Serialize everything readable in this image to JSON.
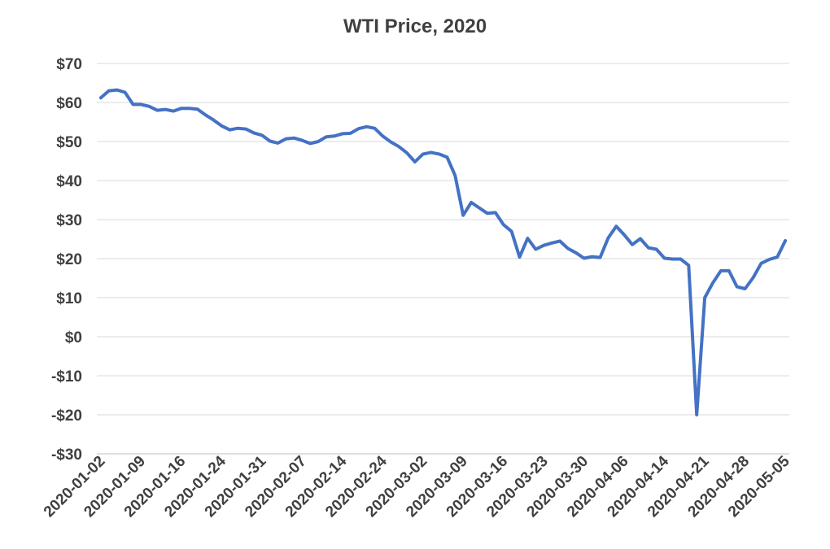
{
  "chart_data": {
    "type": "line",
    "title": "WTI Price, 2020",
    "xlabel": "",
    "ylabel": "",
    "ylim": [
      -30,
      70
    ],
    "y_ticks": [
      70,
      60,
      50,
      40,
      30,
      20,
      10,
      0,
      -10,
      -20,
      -30
    ],
    "y_tick_labels": [
      "$70",
      "$60",
      "$50",
      "$40",
      "$30",
      "$20",
      "$10",
      "$0",
      "-$10",
      "-$20",
      "-$30"
    ],
    "x_tick_labels": [
      "2020-01-02",
      "2020-01-09",
      "2020-01-16",
      "2020-01-24",
      "2020-01-31",
      "2020-02-07",
      "2020-02-14",
      "2020-02-24",
      "2020-03-02",
      "2020-03-09",
      "2020-03-16",
      "2020-03-23",
      "2020-03-30",
      "2020-04-06",
      "2020-04-14",
      "2020-04-21",
      "2020-04-28",
      "2020-05-05"
    ],
    "grid": true,
    "legend": "none",
    "color": "#4472c4",
    "x": [
      "2020-01-02",
      "2020-01-03",
      "2020-01-06",
      "2020-01-07",
      "2020-01-08",
      "2020-01-09",
      "2020-01-10",
      "2020-01-13",
      "2020-01-14",
      "2020-01-15",
      "2020-01-16",
      "2020-01-17",
      "2020-01-21",
      "2020-01-22",
      "2020-01-23",
      "2020-01-24",
      "2020-01-27",
      "2020-01-28",
      "2020-01-29",
      "2020-01-30",
      "2020-01-31",
      "2020-02-03",
      "2020-02-04",
      "2020-02-05",
      "2020-02-06",
      "2020-02-07",
      "2020-02-10",
      "2020-02-11",
      "2020-02-12",
      "2020-02-13",
      "2020-02-14",
      "2020-02-18",
      "2020-02-19",
      "2020-02-20",
      "2020-02-21",
      "2020-02-24",
      "2020-02-25",
      "2020-02-26",
      "2020-02-27",
      "2020-02-28",
      "2020-03-02",
      "2020-03-03",
      "2020-03-04",
      "2020-03-05",
      "2020-03-06",
      "2020-03-09",
      "2020-03-10",
      "2020-03-11",
      "2020-03-12",
      "2020-03-13",
      "2020-03-16",
      "2020-03-17",
      "2020-03-18",
      "2020-03-19",
      "2020-03-20",
      "2020-03-23",
      "2020-03-24",
      "2020-03-25",
      "2020-03-26",
      "2020-03-27",
      "2020-03-30",
      "2020-03-31",
      "2020-04-01",
      "2020-04-02",
      "2020-04-03",
      "2020-04-06",
      "2020-04-07",
      "2020-04-08",
      "2020-04-09",
      "2020-04-13",
      "2020-04-14",
      "2020-04-15",
      "2020-04-16",
      "2020-04-17",
      "2020-04-20",
      "2020-04-21",
      "2020-04-22",
      "2020-04-23",
      "2020-04-24",
      "2020-04-27",
      "2020-04-28",
      "2020-04-29",
      "2020-04-30",
      "2020-05-01",
      "2020-05-04",
      "2020-05-05"
    ],
    "series": [
      {
        "values": [
          61.2,
          63.0,
          63.2,
          62.6,
          59.5,
          59.5,
          59.0,
          58.0,
          58.2,
          57.8,
          58.5,
          58.5,
          58.3,
          56.8,
          55.5,
          54.0,
          53.0,
          53.4,
          53.2,
          52.2,
          51.6,
          50.1,
          49.6,
          50.7,
          50.9,
          50.3,
          49.5,
          50.0,
          51.2,
          51.4,
          52.0,
          52.1,
          53.3,
          53.8,
          53.4,
          51.4,
          49.9,
          48.7,
          47.1,
          44.8,
          46.8,
          47.2,
          46.8,
          46.0,
          41.3,
          31.1,
          34.4,
          33.0,
          31.6,
          31.8,
          28.7,
          27.0,
          20.4,
          25.2,
          22.4,
          23.4,
          24.0,
          24.5,
          22.6,
          21.5,
          20.1,
          20.5,
          20.3,
          25.3,
          28.3,
          26.1,
          23.6,
          25.1,
          22.8,
          22.4,
          20.1,
          19.9,
          19.9,
          18.3,
          -20.0,
          10.0,
          13.8,
          16.9,
          16.9,
          12.8,
          12.3,
          15.1,
          18.8,
          19.8,
          20.4,
          24.6
        ]
      }
    ]
  }
}
